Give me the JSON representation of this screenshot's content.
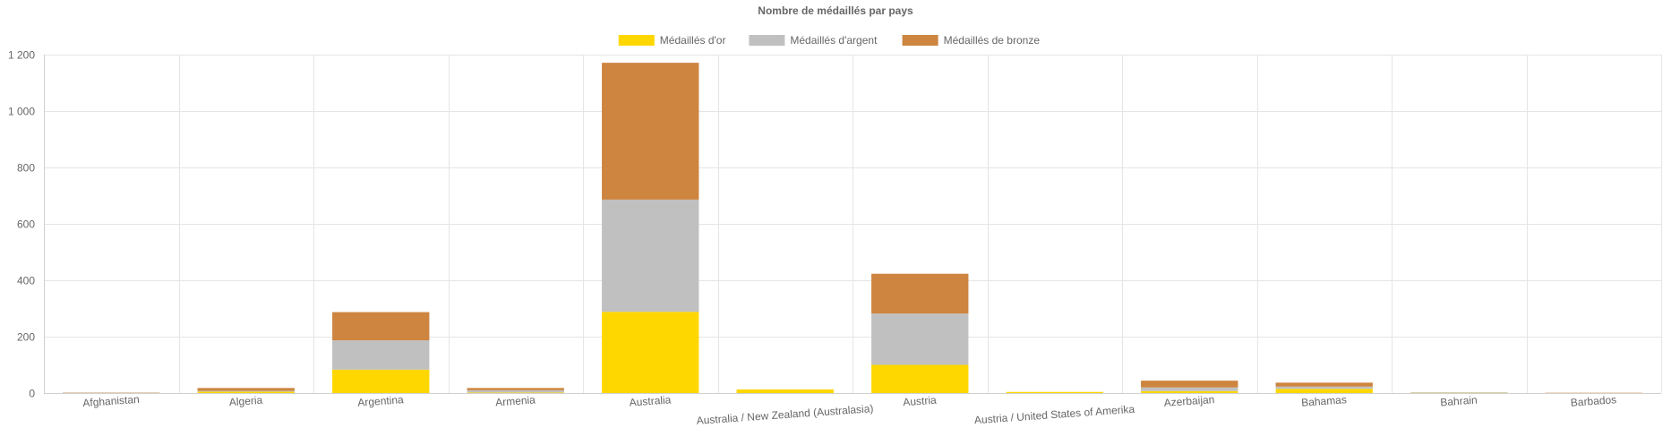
{
  "chart_data": {
    "type": "bar",
    "stacked": true,
    "title": "Nombre de médaillés par pays",
    "xlabel": "",
    "ylabel": "",
    "ylim": [
      0,
      1200
    ],
    "yticks": [
      0,
      200,
      400,
      600,
      800,
      1000,
      1200
    ],
    "yticks_labels": [
      "0",
      "200",
      "400",
      "600",
      "800",
      "1 000",
      "1 200"
    ],
    "grid": true,
    "legend_position": "top",
    "categories": [
      "Afghanistan",
      "Algeria",
      "Argentina",
      "Armenia",
      "Australia",
      "Australia / New Zealand (Australasia)",
      "Austria",
      "Austria / United States of Amerika",
      "Azerbaijan",
      "Bahamas",
      "Bahrain",
      "Barbados"
    ],
    "series": [
      {
        "name": "Médaillés d'or",
        "color": "#FFD700",
        "values": [
          0,
          5,
          83,
          2,
          288,
          13,
          100,
          4,
          7,
          15,
          1,
          0
        ]
      },
      {
        "name": "Médaillés d'argent",
        "color": "#C0C0C0",
        "values": [
          1,
          3,
          104,
          8,
          398,
          0,
          182,
          0,
          13,
          8,
          2,
          0
        ]
      },
      {
        "name": "Médaillés de bronze",
        "color": "#CD853F",
        "values": [
          1,
          10,
          100,
          8,
          485,
          0,
          141,
          0,
          24,
          14,
          0,
          1
        ]
      }
    ]
  }
}
